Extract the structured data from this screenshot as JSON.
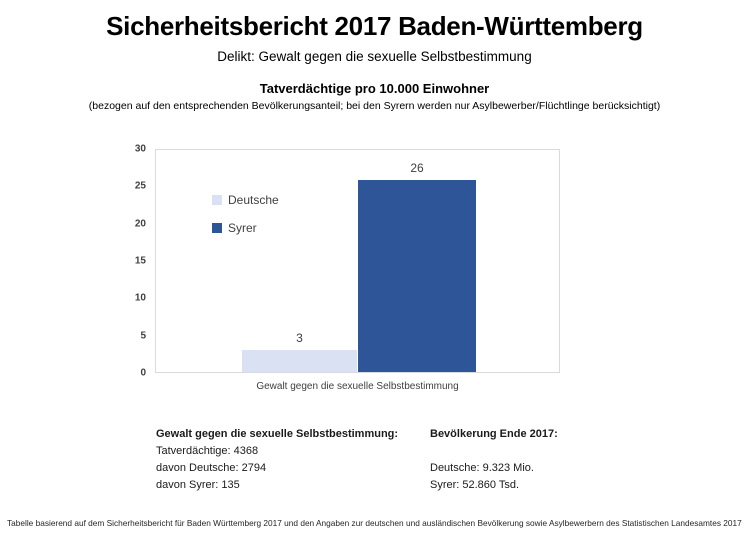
{
  "page": {
    "title": "Sicherheitsbericht 2017 Baden-Württemberg",
    "subtitle": "Delikt: Gewalt gegen die sexuelle Selbstbestimmung"
  },
  "chart": {
    "heading": "Tatverdächtige pro 10.000 Einwohner",
    "subheading": "(bezogen auf den entsprechenden Bevölkerungsanteil; bei den Syrern werden nur Asylbewerber/Flüchtlinge berücksichtigt)"
  },
  "chart_data": {
    "type": "bar",
    "categories": [
      "Gewalt gegen die sexuelle Selbstbestimmung"
    ],
    "series": [
      {
        "name": "Deutsche",
        "values": [
          3
        ],
        "color": "#d9e1f2"
      },
      {
        "name": "Syrer",
        "values": [
          26
        ],
        "color": "#2e5597"
      }
    ],
    "title": "Tatverdächtige pro 10.000 Einwohner",
    "xlabel": "Gewalt gegen die sexuelle Selbstbestimmung",
    "ylabel": "",
    "ylim": [
      0,
      30
    ],
    "yticks": [
      0,
      5,
      10,
      15,
      20,
      25,
      30
    ],
    "grid": false,
    "legend_position": "inside-top-left",
    "data_labels": true
  },
  "info": {
    "left": {
      "heading": "Gewalt gegen die sexuelle Selbstbestimmung:",
      "lines": [
        "Tatverdächtige: 4368",
        "davon Deutsche: 2794",
        "davon Syrer: 135"
      ]
    },
    "right": {
      "heading": "Bevölkerung Ende 2017:",
      "lines": [
        "Deutsche: 9.323 Mio.",
        "Syrer: 52.860 Tsd."
      ]
    }
  },
  "footer": {
    "text": "Tabelle basierend auf dem Sicherheitsbericht für Baden Württemberg 2017 und den Angaben zur deutschen und ausländischen Bevölkerung sowie Asylbewerbern des Statistischen Landesamtes 2017"
  }
}
